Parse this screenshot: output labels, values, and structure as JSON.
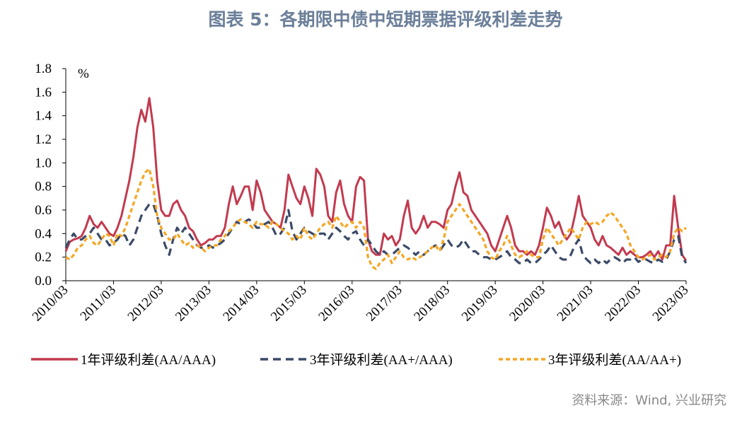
{
  "chart_data": {
    "type": "line",
    "title": "图表 5：各期限中债中短期票据评级利差走势",
    "y_unit": "%",
    "source": "资料来源：Wind, 兴业研究",
    "x": [
      "2010/03",
      "2010/04",
      "2010/05",
      "2010/06",
      "2010/07",
      "2010/08",
      "2010/09",
      "2010/10",
      "2010/11",
      "2010/12",
      "2011/01",
      "2011/02",
      "2011/03",
      "2011/04",
      "2011/05",
      "2011/06",
      "2011/07",
      "2011/08",
      "2011/09",
      "2011/10",
      "2011/11",
      "2011/12",
      "2012/01",
      "2012/02",
      "2012/03",
      "2012/04",
      "2012/05",
      "2012/06",
      "2012/07",
      "2012/08",
      "2012/09",
      "2012/10",
      "2012/11",
      "2012/12",
      "2013/01",
      "2013/02",
      "2013/03",
      "2013/04",
      "2013/05",
      "2013/06",
      "2013/07",
      "2013/08",
      "2013/09",
      "2013/10",
      "2013/11",
      "2013/12",
      "2014/01",
      "2014/02",
      "2014/03",
      "2014/04",
      "2014/05",
      "2014/06",
      "2014/07",
      "2014/08",
      "2014/09",
      "2014/10",
      "2014/11",
      "2014/12",
      "2015/01",
      "2015/02",
      "2015/03",
      "2015/04",
      "2015/05",
      "2015/06",
      "2015/07",
      "2015/08",
      "2015/09",
      "2015/10",
      "2015/11",
      "2015/12",
      "2016/01",
      "2016/02",
      "2016/03",
      "2016/04",
      "2016/05",
      "2016/06",
      "2016/07",
      "2016/08",
      "2016/09",
      "2016/10",
      "2016/11",
      "2016/12",
      "2017/01",
      "2017/02",
      "2017/03",
      "2017/04",
      "2017/05",
      "2017/06",
      "2017/07",
      "2017/08",
      "2017/09",
      "2017/10",
      "2017/11",
      "2017/12",
      "2018/01",
      "2018/02",
      "2018/03",
      "2018/04",
      "2018/05",
      "2018/06",
      "2018/07",
      "2018/08",
      "2018/09",
      "2018/10",
      "2018/11",
      "2018/12",
      "2019/01",
      "2019/02",
      "2019/03",
      "2019/04",
      "2019/05",
      "2019/06",
      "2019/07",
      "2019/08",
      "2019/09",
      "2019/10",
      "2019/11",
      "2019/12",
      "2020/01",
      "2020/02",
      "2020/03",
      "2020/04",
      "2020/05",
      "2020/06",
      "2020/07",
      "2020/08",
      "2020/09",
      "2020/10",
      "2020/11",
      "2020/12",
      "2021/01",
      "2021/02",
      "2021/03",
      "2021/04",
      "2021/05",
      "2021/06",
      "2021/07",
      "2021/08",
      "2021/09",
      "2021/10",
      "2021/11",
      "2021/12",
      "2022/01",
      "2022/02",
      "2022/03",
      "2022/04",
      "2022/05",
      "2022/06",
      "2022/07",
      "2022/08",
      "2022/09",
      "2022/10",
      "2022/11",
      "2022/12",
      "2023/01",
      "2023/02",
      "2023/03"
    ],
    "xticks": [
      "2010/03",
      "2011/03",
      "2012/03",
      "2013/03",
      "2014/03",
      "2015/03",
      "2016/03",
      "2017/03",
      "2018/03",
      "2019/03",
      "2020/03",
      "2021/03",
      "2022/03",
      "2023/03"
    ],
    "ylim": [
      0,
      1.8
    ],
    "yticks": [
      {
        "value": 0,
        "label": "0.0"
      },
      0.2,
      0.4,
      0.6,
      0.8,
      {
        "value": 1,
        "label": "1.0"
      },
      1.2,
      1.4,
      1.6,
      1.8
    ],
    "series": [
      {
        "name": "1年评级利差(AA/AAA)",
        "color": "#c23a4f",
        "dash": "solid",
        "values": [
          0.25,
          0.33,
          0.35,
          0.36,
          0.38,
          0.45,
          0.55,
          0.48,
          0.45,
          0.5,
          0.45,
          0.4,
          0.38,
          0.45,
          0.55,
          0.7,
          0.85,
          1.05,
          1.3,
          1.45,
          1.35,
          1.55,
          1.3,
          0.85,
          0.6,
          0.55,
          0.55,
          0.65,
          0.68,
          0.6,
          0.55,
          0.45,
          0.42,
          0.35,
          0.3,
          0.32,
          0.35,
          0.35,
          0.38,
          0.38,
          0.45,
          0.65,
          0.8,
          0.65,
          0.72,
          0.8,
          0.8,
          0.6,
          0.85,
          0.75,
          0.6,
          0.55,
          0.5,
          0.48,
          0.45,
          0.6,
          0.9,
          0.8,
          0.7,
          0.65,
          0.8,
          0.7,
          0.55,
          0.95,
          0.9,
          0.8,
          0.55,
          0.5,
          0.75,
          0.85,
          0.65,
          0.55,
          0.5,
          0.8,
          0.88,
          0.85,
          0.35,
          0.25,
          0.22,
          0.22,
          0.4,
          0.35,
          0.38,
          0.3,
          0.35,
          0.55,
          0.68,
          0.45,
          0.4,
          0.45,
          0.55,
          0.45,
          0.5,
          0.5,
          0.48,
          0.45,
          0.6,
          0.65,
          0.8,
          0.92,
          0.75,
          0.72,
          0.6,
          0.55,
          0.5,
          0.45,
          0.4,
          0.3,
          0.25,
          0.35,
          0.45,
          0.55,
          0.45,
          0.3,
          0.25,
          0.25,
          0.22,
          0.25,
          0.22,
          0.3,
          0.45,
          0.62,
          0.55,
          0.45,
          0.5,
          0.4,
          0.35,
          0.4,
          0.55,
          0.72,
          0.55,
          0.5,
          0.45,
          0.35,
          0.3,
          0.38,
          0.3,
          0.28,
          0.25,
          0.22,
          0.28,
          0.22,
          0.25,
          0.22,
          0.2,
          0.2,
          0.22,
          0.25,
          0.2,
          0.25,
          0.18,
          0.3,
          0.3,
          0.72,
          0.45,
          0.22,
          0.17
        ]
      },
      {
        "name": "3年评级利差(AA+/AAA)",
        "color": "#3b4a67",
        "dash": "dashed",
        "values": [
          0.28,
          0.35,
          0.4,
          0.35,
          0.35,
          0.38,
          0.4,
          0.45,
          0.4,
          0.35,
          0.35,
          0.3,
          0.32,
          0.35,
          0.4,
          0.38,
          0.3,
          0.35,
          0.45,
          0.55,
          0.6,
          0.65,
          0.65,
          0.55,
          0.4,
          0.3,
          0.22,
          0.35,
          0.45,
          0.4,
          0.45,
          0.4,
          0.35,
          0.3,
          0.28,
          0.28,
          0.3,
          0.28,
          0.3,
          0.32,
          0.35,
          0.4,
          0.45,
          0.5,
          0.48,
          0.5,
          0.52,
          0.5,
          0.45,
          0.45,
          0.48,
          0.5,
          0.45,
          0.38,
          0.4,
          0.45,
          0.6,
          0.42,
          0.35,
          0.4,
          0.45,
          0.42,
          0.4,
          0.38,
          0.4,
          0.4,
          0.35,
          0.4,
          0.45,
          0.42,
          0.38,
          0.35,
          0.4,
          0.42,
          0.35,
          0.3,
          0.35,
          0.3,
          0.25,
          0.22,
          0.25,
          0.22,
          0.22,
          0.25,
          0.28,
          0.3,
          0.28,
          0.25,
          0.22,
          0.25,
          0.22,
          0.25,
          0.28,
          0.3,
          0.25,
          0.3,
          0.35,
          0.3,
          0.28,
          0.3,
          0.35,
          0.3,
          0.25,
          0.25,
          0.22,
          0.2,
          0.2,
          0.18,
          0.18,
          0.2,
          0.22,
          0.25,
          0.2,
          0.18,
          0.15,
          0.15,
          0.18,
          0.15,
          0.15,
          0.18,
          0.22,
          0.25,
          0.3,
          0.25,
          0.2,
          0.18,
          0.18,
          0.22,
          0.3,
          0.35,
          0.22,
          0.18,
          0.15,
          0.18,
          0.15,
          0.18,
          0.15,
          0.18,
          0.2,
          0.18,
          0.15,
          0.18,
          0.18,
          0.2,
          0.16,
          0.18,
          0.18,
          0.16,
          0.15,
          0.18,
          0.16,
          0.18,
          0.25,
          0.35,
          0.38,
          0.2,
          0.15
        ]
      },
      {
        "name": "3年评级利差(AA/AA+)",
        "color": "#f5a623",
        "dash": "dotted",
        "values": [
          0.2,
          0.18,
          0.22,
          0.28,
          0.3,
          0.35,
          0.38,
          0.32,
          0.3,
          0.35,
          0.4,
          0.38,
          0.3,
          0.4,
          0.38,
          0.45,
          0.55,
          0.65,
          0.75,
          0.85,
          0.92,
          0.95,
          0.8,
          0.55,
          0.45,
          0.4,
          0.35,
          0.35,
          0.4,
          0.35,
          0.3,
          0.32,
          0.28,
          0.3,
          0.28,
          0.25,
          0.28,
          0.3,
          0.3,
          0.35,
          0.38,
          0.42,
          0.45,
          0.5,
          0.52,
          0.5,
          0.48,
          0.45,
          0.5,
          0.48,
          0.48,
          0.45,
          0.5,
          0.48,
          0.45,
          0.42,
          0.4,
          0.35,
          0.38,
          0.35,
          0.45,
          0.38,
          0.35,
          0.4,
          0.45,
          0.48,
          0.5,
          0.45,
          0.55,
          0.5,
          0.45,
          0.48,
          0.5,
          0.45,
          0.5,
          0.45,
          0.2,
          0.12,
          0.1,
          0.15,
          0.18,
          0.22,
          0.15,
          0.2,
          0.25,
          0.2,
          0.18,
          0.2,
          0.18,
          0.2,
          0.22,
          0.25,
          0.28,
          0.3,
          0.25,
          0.35,
          0.5,
          0.55,
          0.6,
          0.65,
          0.6,
          0.55,
          0.5,
          0.45,
          0.4,
          0.35,
          0.25,
          0.2,
          0.18,
          0.25,
          0.3,
          0.38,
          0.3,
          0.22,
          0.2,
          0.22,
          0.25,
          0.22,
          0.2,
          0.2,
          0.35,
          0.45,
          0.4,
          0.35,
          0.3,
          0.35,
          0.4,
          0.45,
          0.4,
          0.35,
          0.45,
          0.5,
          0.48,
          0.5,
          0.48,
          0.5,
          0.55,
          0.58,
          0.55,
          0.5,
          0.45,
          0.4,
          0.3,
          0.25,
          0.2,
          0.18,
          0.2,
          0.22,
          0.18,
          0.2,
          0.22,
          0.2,
          0.25,
          0.4,
          0.45,
          0.42,
          0.45
        ]
      }
    ]
  }
}
